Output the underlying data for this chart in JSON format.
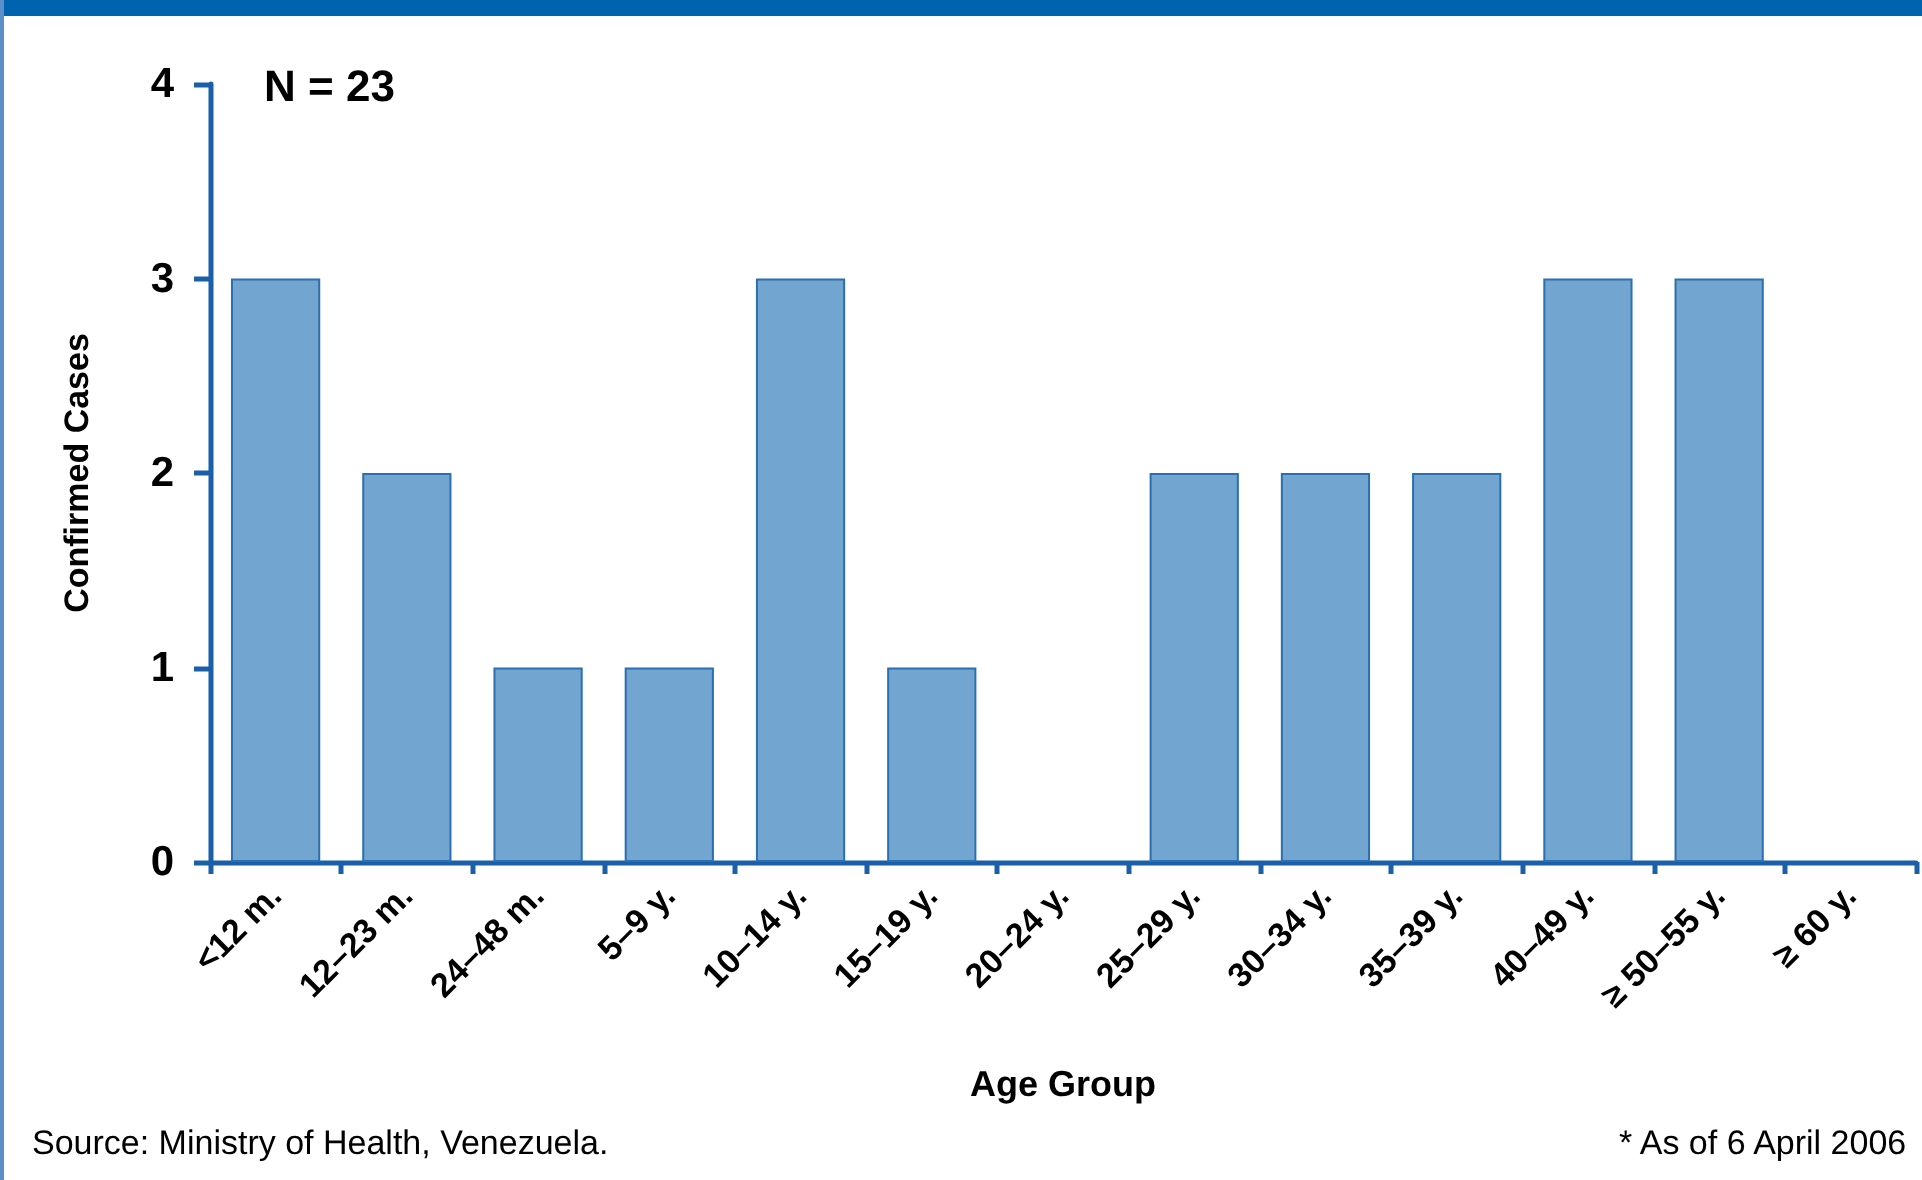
{
  "chart_data": {
    "type": "bar",
    "xlabel": "Age Group",
    "ylabel": "Confirmed Cases",
    "categories": [
      "<12 m.",
      "12–23 m.",
      "24–48 m.",
      "5–9 y.",
      "10–14 y.",
      "15–19 y.",
      "20–24 y.",
      "25–29 y.",
      "30–34 y.",
      "35–39 y.",
      "40–49 y.",
      "≥ 50–55 y.",
      "≥ 60 y."
    ],
    "values": [
      3,
      2,
      1,
      1,
      3,
      1,
      0,
      2,
      2,
      2,
      3,
      3,
      0
    ],
    "color": "#72a6d0",
    "ylim": [
      0,
      4
    ],
    "yticks": [
      0,
      1,
      2,
      3,
      4
    ],
    "grid": false,
    "annotations": [
      "N = 23",
      "Source: Ministry of Health, Venezuela.",
      "* As of 6 April 2006"
    ]
  }
}
